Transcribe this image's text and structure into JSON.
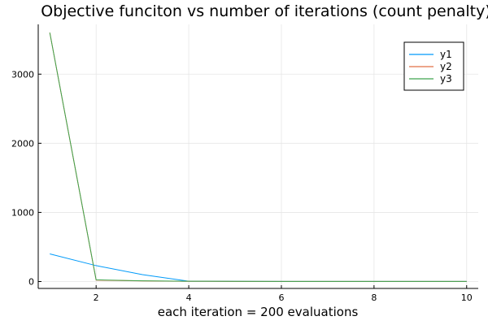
{
  "chart_data": {
    "type": "line",
    "title": "Objective funciton vs number of iterations (count penalty)",
    "xlabel": "each iteration = 200 evaluations",
    "ylabel": "",
    "xlim": [
      0.75,
      10.25
    ],
    "ylim": [
      -100,
      3720
    ],
    "xticks": [
      2,
      4,
      6,
      8,
      10
    ],
    "yticks": [
      0,
      1000,
      2000,
      3000
    ],
    "grid": true,
    "legend_position": "top-right",
    "x": [
      1,
      2,
      3,
      4,
      5,
      6,
      7,
      8,
      9,
      10
    ],
    "series": [
      {
        "name": "y1",
        "color": "#009af9",
        "values": [
          400,
          230,
          100,
          5,
          3,
          2,
          2,
          2,
          2,
          2
        ]
      },
      {
        "name": "y2",
        "color": "#e26f46",
        "values": [
          3600,
          20,
          8,
          3,
          2,
          2,
          2,
          2,
          2,
          2
        ]
      },
      {
        "name": "y3",
        "color": "#3da44d",
        "values": [
          3600,
          25,
          10,
          4,
          3,
          2,
          2,
          2,
          2,
          2
        ]
      }
    ]
  }
}
